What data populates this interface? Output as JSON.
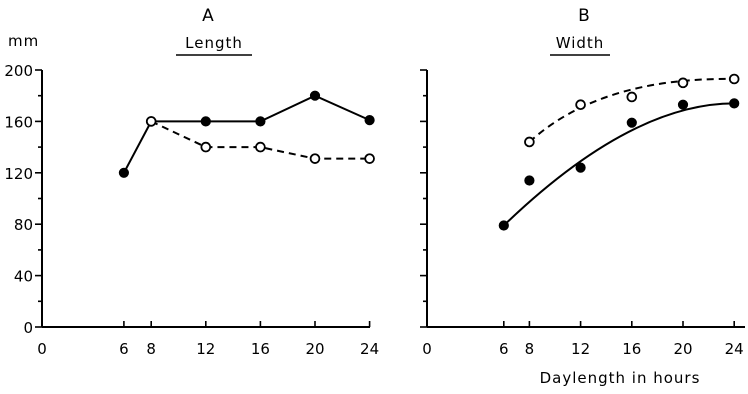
{
  "chart_data": [
    {
      "type": "line",
      "panel_letter": "A",
      "title": "Length",
      "unit_label": "mm",
      "x_origin_label": "0",
      "x_ticks": [
        6,
        8,
        12,
        16,
        20,
        24
      ],
      "y_ticks": [
        0,
        40,
        80,
        120,
        160,
        200
      ],
      "ylim": [
        0,
        200
      ],
      "series": [
        {
          "marker": "filled-circle",
          "line": "solid",
          "x": [
            6,
            8,
            12,
            16,
            20,
            24
          ],
          "values": [
            120,
            160,
            160,
            160,
            180,
            161
          ]
        },
        {
          "marker": "open-circle",
          "line": "dashed",
          "x": [
            8,
            12,
            16,
            20,
            24
          ],
          "values": [
            160,
            140,
            140,
            131,
            131
          ]
        }
      ]
    },
    {
      "type": "line",
      "panel_letter": "B",
      "title": "Width",
      "x_origin_label": "0",
      "x_ticks": [
        6,
        8,
        12,
        16,
        20,
        24
      ],
      "xlabel": "Daylength in hours",
      "ylim": [
        0,
        200
      ],
      "series": [
        {
          "marker": "filled-circle",
          "line": "solid-fitted-curve",
          "x": [
            6,
            8,
            12,
            16,
            20,
            24
          ],
          "values": [
            79,
            114,
            124,
            159,
            173,
            174
          ]
        },
        {
          "marker": "open-circle",
          "line": "dashed-fitted-curve",
          "x": [
            8,
            12,
            16,
            20,
            24
          ],
          "values": [
            144,
            173,
            179,
            190,
            193
          ]
        }
      ]
    }
  ]
}
